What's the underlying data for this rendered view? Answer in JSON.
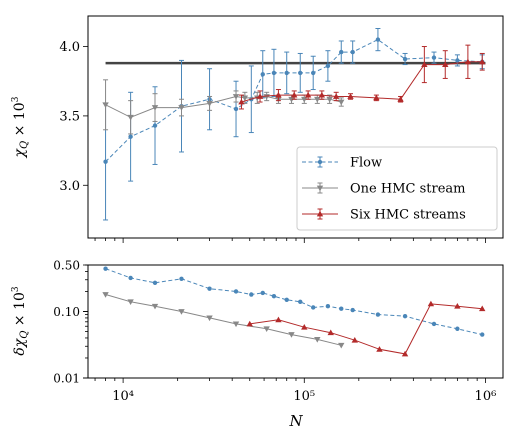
{
  "chart_data": [
    {
      "type": "line",
      "ylabel": "χ_Q × 10^3",
      "xscale": "log",
      "xlim": [
        6400,
        1250000
      ],
      "ylim": [
        2.62,
        4.22
      ],
      "yticks": [
        3.0,
        3.5,
        4.0
      ],
      "ytick_labels": [
        "3.0",
        "3.5",
        "4.0"
      ],
      "reference_line": {
        "y": 3.88,
        "x_from": 8000,
        "x_to": 1000000,
        "color": "#444444"
      },
      "legend": "bottom-right",
      "series": [
        {
          "name": "Flow",
          "color": "#4a86b8",
          "linestyle": "dashed",
          "x": [
            8000,
            11000,
            15000,
            21000,
            30000,
            42000,
            51000,
            59000,
            68000,
            80000,
            95000,
            112000,
            135000,
            160000,
            185000,
            255000,
            360000,
            520000,
            700000,
            960000
          ],
          "y": [
            3.17,
            3.35,
            3.43,
            3.57,
            3.62,
            3.55,
            3.62,
            3.8,
            3.81,
            3.81,
            3.81,
            3.81,
            3.86,
            3.96,
            3.96,
            4.05,
            3.91,
            3.92,
            3.9,
            3.89
          ],
          "yerr": [
            0.42,
            0.32,
            0.28,
            0.33,
            0.22,
            0.2,
            0.24,
            0.17,
            0.17,
            0.15,
            0.14,
            0.12,
            0.11,
            0.08,
            0.08,
            0.08,
            0.04,
            0.04,
            0.04,
            0.05
          ]
        },
        {
          "name": "One HMC stream",
          "color": "#888888",
          "linestyle": "solid",
          "x": [
            8000,
            11000,
            15000,
            21000,
            30000,
            42000,
            47000,
            55000,
            62000,
            72000,
            85000,
            100000,
            118000,
            138000,
            160000
          ],
          "y": [
            3.58,
            3.49,
            3.56,
            3.56,
            3.59,
            3.64,
            3.63,
            3.63,
            3.64,
            3.62,
            3.62,
            3.62,
            3.62,
            3.62,
            3.6
          ],
          "yerr": [
            0.18,
            0.12,
            0.1,
            0.06,
            0.05,
            0.04,
            0.04,
            0.04,
            0.03,
            0.03,
            0.03,
            0.03,
            0.03,
            0.03,
            0.03
          ]
        },
        {
          "name": "Six HMC streams",
          "color": "#b32a2a",
          "linestyle": "solid",
          "x": [
            45000,
            57000,
            72000,
            88000,
            105000,
            125000,
            150000,
            180000,
            250000,
            340000,
            460000,
            600000,
            800000,
            960000
          ],
          "y": [
            3.6,
            3.64,
            3.65,
            3.65,
            3.65,
            3.65,
            3.64,
            3.64,
            3.63,
            3.62,
            3.87,
            3.87,
            3.89,
            3.89
          ],
          "yerr": [
            0.05,
            0.04,
            0.04,
            0.03,
            0.03,
            0.03,
            0.03,
            0.02,
            0.02,
            0.02,
            0.13,
            0.1,
            0.12,
            0.06
          ]
        }
      ]
    },
    {
      "type": "line",
      "xlabel": "N",
      "ylabel": "δχ_Q × 10^3",
      "xscale": "log",
      "yscale": "log",
      "xlim": [
        6400,
        1250000
      ],
      "ylim": [
        0.01,
        0.5
      ],
      "yticks": [
        0.01,
        0.1,
        0.5
      ],
      "ytick_labels": [
        "0.01",
        "0.10",
        "0.50"
      ],
      "xticks": [
        10000,
        100000,
        1000000
      ],
      "xtick_labels": [
        "10⁴",
        "10⁵",
        "10⁶"
      ],
      "series": [
        {
          "name": "Flow",
          "color": "#4a86b8",
          "linestyle": "dashed",
          "x": [
            8000,
            11000,
            15000,
            21000,
            30000,
            42000,
            51000,
            59000,
            68000,
            80000,
            95000,
            112000,
            135000,
            160000,
            185000,
            255000,
            360000,
            520000,
            700000,
            960000
          ],
          "y": [
            0.44,
            0.32,
            0.27,
            0.31,
            0.22,
            0.2,
            0.18,
            0.19,
            0.17,
            0.15,
            0.14,
            0.115,
            0.12,
            0.11,
            0.105,
            0.09,
            0.085,
            0.065,
            0.055,
            0.045
          ]
        },
        {
          "name": "One HMC stream",
          "color": "#888888",
          "linestyle": "solid",
          "x": [
            8000,
            11000,
            15000,
            21000,
            30000,
            42000,
            62000,
            85000,
            118000,
            160000
          ],
          "y": [
            0.18,
            0.14,
            0.12,
            0.1,
            0.08,
            0.065,
            0.055,
            0.045,
            0.038,
            0.031
          ]
        },
        {
          "name": "Six HMC streams",
          "color": "#b32a2a",
          "linestyle": "solid",
          "x": [
            50000,
            72000,
            100000,
            140000,
            190000,
            260000,
            360000,
            500000,
            700000,
            960000
          ],
          "y": [
            0.065,
            0.075,
            0.058,
            0.048,
            0.037,
            0.027,
            0.023,
            0.13,
            0.12,
            0.11
          ]
        }
      ]
    }
  ]
}
